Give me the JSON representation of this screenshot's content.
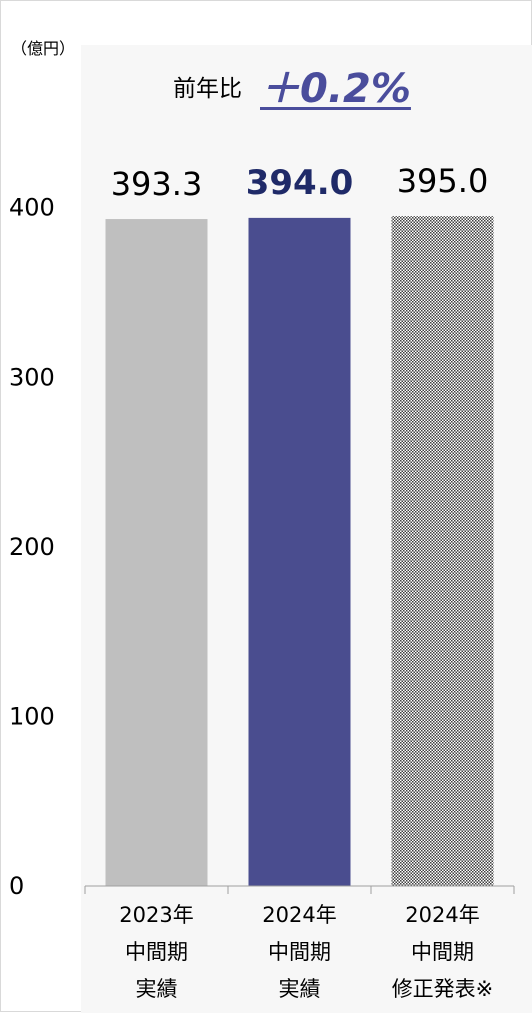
{
  "unit": "（億円）",
  "yoy": {
    "label": "前年比",
    "value": "＋0.2%"
  },
  "chart_data": {
    "type": "bar",
    "categories": [
      [
        "2023年",
        "中間期",
        "実績"
      ],
      [
        "2024年",
        "中間期",
        "実績"
      ],
      [
        "2024年",
        "中間期",
        "修正発表※"
      ]
    ],
    "values": [
      393.3,
      394.0,
      395.0
    ],
    "value_labels": [
      "393.3",
      "394.0",
      "395.0"
    ],
    "yticks": [
      "0",
      "100",
      "200",
      "300",
      "400"
    ],
    "ylim": [
      0,
      470
    ],
    "grid": false,
    "colors": [
      "#bfbfbf",
      "#4a4d8f",
      "#9a9a9a"
    ]
  }
}
